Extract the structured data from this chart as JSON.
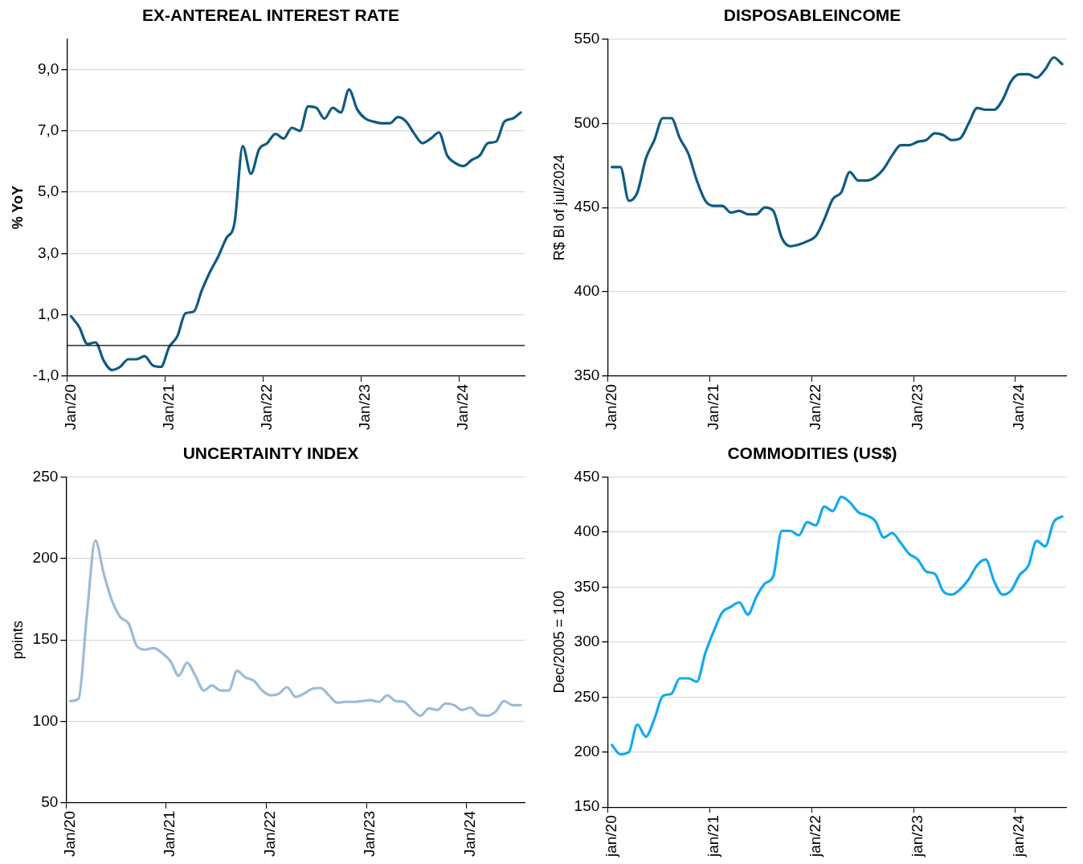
{
  "chart_data": [
    {
      "type": "line",
      "title": "EX-ANTEREAL INTEREST RATE",
      "ylabel": "% YoY",
      "categories": [
        "Jan/20",
        null,
        null,
        null,
        null,
        null,
        null,
        null,
        null,
        null,
        null,
        null,
        "Jan/21",
        null,
        null,
        null,
        null,
        null,
        null,
        null,
        null,
        null,
        null,
        null,
        "Jan/22",
        null,
        null,
        null,
        null,
        null,
        null,
        null,
        null,
        null,
        null,
        null,
        "Jan/23",
        null,
        null,
        null,
        null,
        null,
        null,
        null,
        null,
        null,
        null,
        null,
        "Jan/24",
        null,
        null,
        null,
        null,
        null,
        null,
        null
      ],
      "series": [
        {
          "color": "#0e5a82",
          "values": [
            0.95,
            0.6,
            0.05,
            0.1,
            -0.5,
            -0.8,
            -0.7,
            -0.45,
            -0.45,
            -0.35,
            -0.65,
            -0.7,
            -0.05,
            0.3,
            1.05,
            1.1,
            1.8,
            2.4,
            2.9,
            3.5,
            4.0,
            6.5,
            5.6,
            6.4,
            6.6,
            6.9,
            6.75,
            7.1,
            7.0,
            7.8,
            7.75,
            7.4,
            7.75,
            7.6,
            8.35,
            7.7,
            7.4,
            7.3,
            7.25,
            7.25,
            7.45,
            7.3,
            6.9,
            6.6,
            6.75,
            6.95,
            6.2,
            5.95,
            5.85,
            6.05,
            6.2,
            6.6,
            6.65,
            7.3,
            7.4,
            7.6
          ]
        }
      ],
      "ylim": [
        -1,
        10
      ],
      "yticks": [
        {
          "value": -1,
          "label": "-1,0"
        },
        {
          "value": 1,
          "label": "1,0"
        },
        {
          "value": 3,
          "label": "3,0"
        },
        {
          "value": 5,
          "label": "5,0"
        },
        {
          "value": 7,
          "label": "7,0"
        },
        {
          "value": 9,
          "label": "9,0"
        }
      ],
      "grid": "y",
      "ref_lines": [
        {
          "axis": "y",
          "value": 0,
          "color": "#000000"
        }
      ]
    },
    {
      "type": "line",
      "title": "DISPOSABLEINCOME",
      "ylabel": "R$ Bl of jul/2024",
      "categories": [
        "Jan/20",
        null,
        null,
        null,
        null,
        null,
        null,
        null,
        null,
        null,
        null,
        null,
        "Jan/21",
        null,
        null,
        null,
        null,
        null,
        null,
        null,
        null,
        null,
        null,
        null,
        "Jan/22",
        null,
        null,
        null,
        null,
        null,
        null,
        null,
        null,
        null,
        null,
        null,
        "Jan/23",
        null,
        null,
        null,
        null,
        null,
        null,
        null,
        null,
        null,
        null,
        null,
        "Jan/24",
        null,
        null,
        null,
        null,
        null
      ],
      "series": [
        {
          "color": "#0e5a82",
          "values": [
            474,
            474,
            454,
            459,
            479,
            490,
            503,
            503,
            491,
            482,
            466,
            454,
            451,
            451,
            447,
            448,
            446,
            446,
            450,
            448,
            432,
            427,
            428,
            430,
            433,
            443,
            455,
            459,
            471,
            466,
            466,
            468,
            473,
            481,
            487,
            487,
            489,
            490,
            494,
            493,
            490,
            491,
            500,
            509,
            508,
            508,
            514,
            525,
            529,
            529,
            527,
            532,
            539,
            535
          ]
        }
      ],
      "ylim": [
        350,
        550
      ],
      "yticks": [
        350,
        400,
        450,
        500,
        550
      ],
      "grid": "y"
    },
    {
      "type": "line",
      "title": "UNCERTAINTY INDEX",
      "ylabel": "points",
      "categories": [
        "Jan/20",
        null,
        null,
        null,
        null,
        null,
        null,
        null,
        null,
        null,
        null,
        null,
        "Jan/21",
        null,
        null,
        null,
        null,
        null,
        null,
        null,
        null,
        null,
        null,
        null,
        "Jan/22",
        null,
        null,
        null,
        null,
        null,
        null,
        null,
        null,
        null,
        null,
        null,
        "Jan/23",
        null,
        null,
        null,
        null,
        null,
        null,
        null,
        null,
        null,
        null,
        null,
        "Jan/24",
        null,
        null,
        null,
        null,
        null,
        null
      ],
      "series": [
        {
          "color": "#9dbbd6",
          "values": [
            112.5,
            114,
            166,
            211,
            191,
            174,
            164,
            160,
            146,
            144,
            145,
            142,
            137,
            128,
            136,
            128,
            119,
            122,
            119,
            119,
            131,
            127,
            125,
            119,
            116,
            117,
            121,
            115,
            117,
            120,
            120.5,
            116,
            111.5,
            112,
            112,
            112.5,
            113,
            112,
            116,
            112.5,
            112,
            107,
            103.5,
            108,
            107,
            111,
            110,
            107,
            108.5,
            104,
            103.5,
            106,
            112.5,
            110,
            110
          ]
        }
      ],
      "ylim": [
        50,
        250
      ],
      "yticks": [
        50,
        100,
        150,
        200,
        250
      ],
      "grid": "y"
    },
    {
      "type": "line",
      "title": "COMMODITIES (US$)",
      "ylabel": "Dec/2005 = 100",
      "categories": [
        "jan/20",
        null,
        null,
        null,
        null,
        null,
        null,
        null,
        null,
        null,
        null,
        null,
        "jan/21",
        null,
        null,
        null,
        null,
        null,
        null,
        null,
        null,
        null,
        null,
        null,
        "jan/22",
        null,
        null,
        null,
        null,
        null,
        null,
        null,
        null,
        null,
        null,
        null,
        "jan/23",
        null,
        null,
        null,
        null,
        null,
        null,
        null,
        null,
        null,
        null,
        null,
        "jan/24",
        null,
        null,
        null,
        null,
        null
      ],
      "series": [
        {
          "color": "#12aaf0",
          "values": [
            206.5,
            198,
            200,
            225,
            214,
            230,
            251,
            253,
            267,
            267,
            264,
            290,
            310,
            327,
            332,
            336,
            325,
            341,
            353,
            360,
            401,
            401,
            397,
            409,
            406,
            423,
            419,
            432,
            427,
            418,
            415,
            410,
            395,
            399,
            390,
            380,
            375,
            364,
            362,
            346,
            343,
            348,
            357,
            370,
            375,
            355,
            343,
            347,
            361,
            369,
            392,
            387,
            409,
            414
          ]
        }
      ],
      "ylim": [
        150,
        450
      ],
      "yticks": [
        150,
        200,
        250,
        300,
        350,
        400,
        450
      ],
      "grid": "y"
    }
  ]
}
